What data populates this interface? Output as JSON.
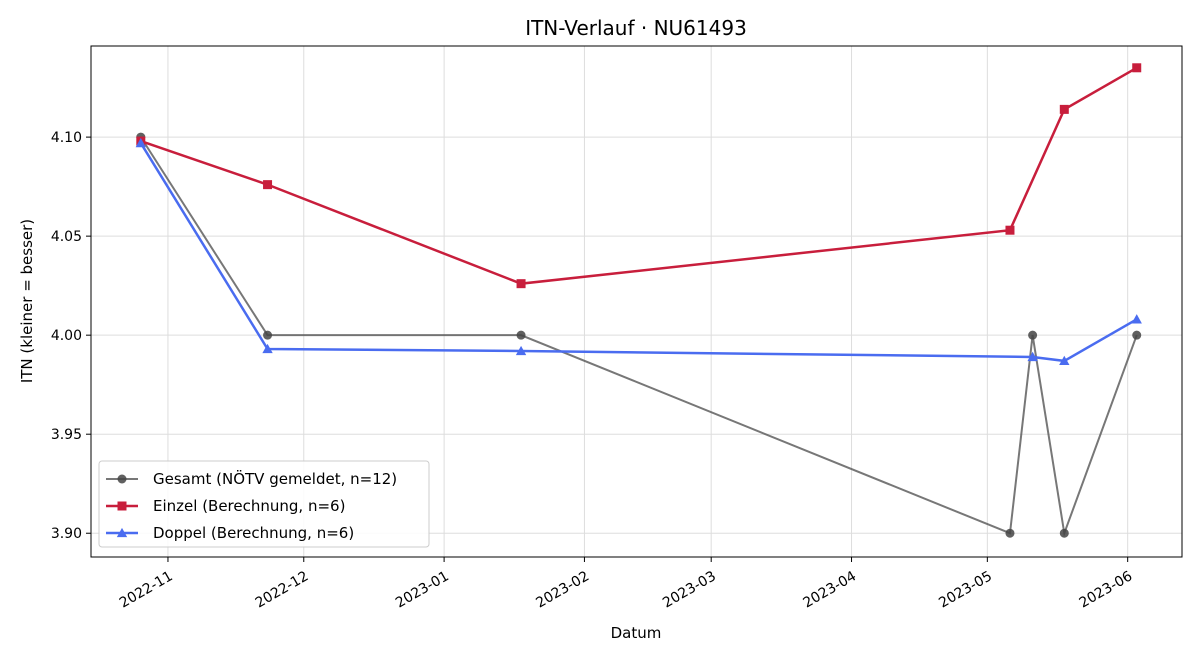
{
  "chart_data": {
    "type": "line",
    "title": "ITN-Verlauf · NU61493",
    "xlabel": "Datum",
    "ylabel": "ITN  (kleiner = besser)",
    "x_axis": {
      "type": "date",
      "range": [
        "2022-10-15",
        "2023-06-13"
      ],
      "ticks": [
        "2022-11-01",
        "2022-12-01",
        "2023-01-01",
        "2023-02-01",
        "2023-03-01",
        "2023-04-01",
        "2023-05-01",
        "2023-06-01"
      ],
      "tick_labels": [
        "2022-11",
        "2022-12",
        "2023-01",
        "2023-02",
        "2023-03",
        "2023-04",
        "2023-05",
        "2023-06"
      ]
    },
    "y_axis": {
      "range": [
        3.888,
        4.146
      ],
      "ticks": [
        3.9,
        3.95,
        4.0,
        4.05,
        4.1
      ],
      "tick_labels": [
        "3.90",
        "3.95",
        "4.00",
        "4.05",
        "4.10"
      ]
    },
    "grid": true,
    "legend_position": "lower-left",
    "series": [
      {
        "name": "Gesamt (NÖTV gemeldet, n=12)",
        "color": "#555555",
        "marker": "circle",
        "points": [
          {
            "x": "2022-10-26",
            "y": 4.1
          },
          {
            "x": "2022-11-23",
            "y": 4.0
          },
          {
            "x": "2023-01-18",
            "y": 4.0
          },
          {
            "x": "2023-05-06",
            "y": 3.9
          },
          {
            "x": "2023-05-11",
            "y": 4.0
          },
          {
            "x": "2023-05-18",
            "y": 3.9
          },
          {
            "x": "2023-06-03",
            "y": 4.0
          }
        ]
      },
      {
        "name": "Einzel (Berechnung, n=6)",
        "color": "#c81e3c",
        "marker": "square",
        "points": [
          {
            "x": "2022-10-26",
            "y": 4.098
          },
          {
            "x": "2022-11-23",
            "y": 4.076
          },
          {
            "x": "2023-01-18",
            "y": 4.026
          },
          {
            "x": "2023-05-06",
            "y": 4.053
          },
          {
            "x": "2023-05-18",
            "y": 4.114
          },
          {
            "x": "2023-06-03",
            "y": 4.135
          }
        ]
      },
      {
        "name": "Doppel (Berechnung, n=6)",
        "color": "#4a6cf0",
        "marker": "triangle",
        "points": [
          {
            "x": "2022-10-26",
            "y": 4.097
          },
          {
            "x": "2022-11-23",
            "y": 3.993
          },
          {
            "x": "2023-01-18",
            "y": 3.992
          },
          {
            "x": "2023-05-11",
            "y": 3.989
          },
          {
            "x": "2023-05-18",
            "y": 3.987
          },
          {
            "x": "2023-06-03",
            "y": 4.008
          }
        ]
      }
    ]
  }
}
